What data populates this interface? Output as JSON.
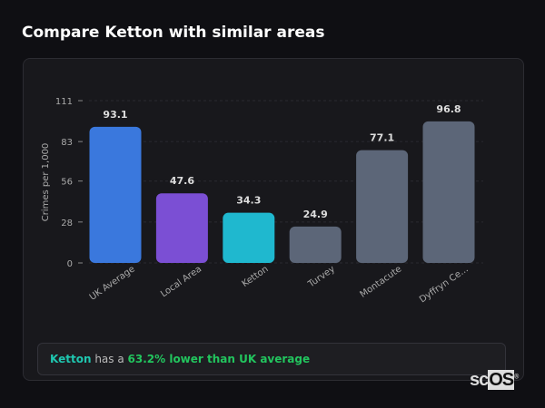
{
  "header": {
    "title": "Compare Ketton with similar areas"
  },
  "chart_data": {
    "type": "bar",
    "title": "",
    "ylabel": "Crimes per 1,000",
    "xlabel": "",
    "ylim": [
      0,
      111
    ],
    "yticks": [
      0,
      28,
      56,
      83,
      111
    ],
    "grid": true,
    "categories": [
      "UK Average",
      "Local Area",
      "Ketton",
      "Turvey",
      "Montacute",
      "Dyffryn Ce..."
    ],
    "values": [
      93.1,
      47.6,
      34.3,
      24.9,
      77.1,
      96.8
    ],
    "colors": [
      "#3a78dd",
      "#7b4fd4",
      "#1fb8cf",
      "#5c6678",
      "#5c6678",
      "#5c6678"
    ]
  },
  "summary": {
    "place": "Ketton",
    "middle": " has a ",
    "stat": "63.2% lower than UK average"
  },
  "logo": {
    "text": "scOS"
  }
}
